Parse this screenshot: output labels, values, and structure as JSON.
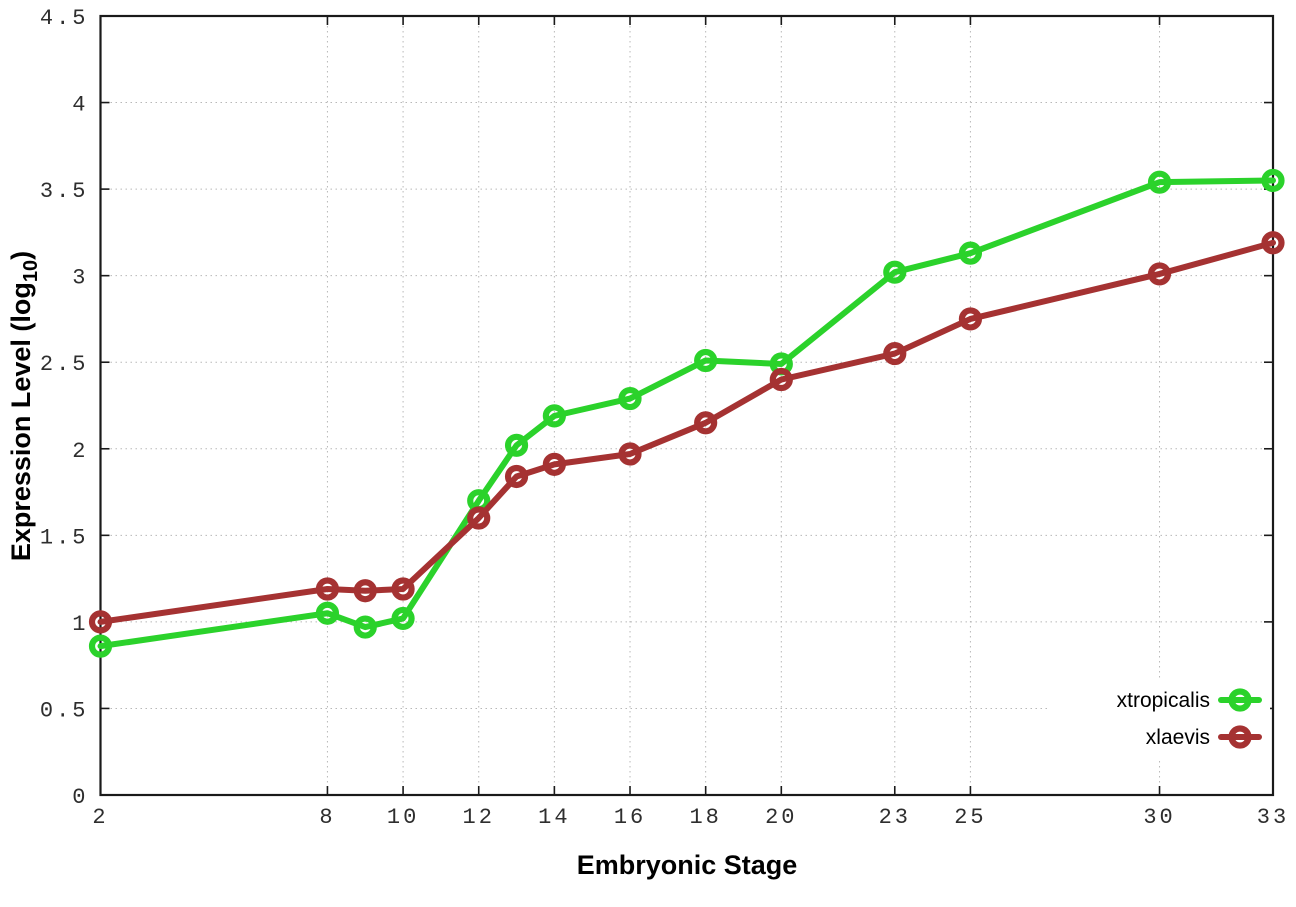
{
  "chart_data": {
    "type": "line",
    "title": "",
    "xlabel": "Embryonic Stage",
    "ylabel": "Expression Level (log10)",
    "ylabel_parts": {
      "prefix": "Expression Level (log",
      "subscript": "10",
      "suffix": ")"
    },
    "xlim": [
      2,
      33
    ],
    "ylim": [
      0,
      4.5
    ],
    "x_ticks": [
      2,
      8,
      10,
      12,
      14,
      16,
      18,
      20,
      23,
      25,
      30,
      33
    ],
    "y_ticks": [
      0,
      0.5,
      1,
      1.5,
      2,
      2.5,
      3,
      3.5,
      4,
      4.5
    ],
    "grid": "dotted",
    "legend_position": "bottom-right-inside",
    "x": [
      2,
      8,
      9,
      10,
      12,
      13,
      14,
      16,
      18,
      20,
      23,
      25,
      30,
      33
    ],
    "series": [
      {
        "name": "xtropicalis",
        "color": "#2bd22b",
        "marker": "open-circle",
        "values": [
          0.86,
          1.05,
          0.97,
          1.02,
          1.7,
          2.02,
          2.19,
          2.29,
          2.51,
          2.49,
          3.02,
          3.13,
          3.54,
          3.55
        ]
      },
      {
        "name": "xlaevis",
        "color": "#a53232",
        "marker": "open-circle",
        "values": [
          1.0,
          1.19,
          1.18,
          1.19,
          1.6,
          1.84,
          1.91,
          1.97,
          2.15,
          2.4,
          2.55,
          2.75,
          3.01,
          3.19
        ]
      }
    ],
    "colors": {
      "frame": "#1a1a1a",
      "grid": "#b8b8b8",
      "tick_label": "#2e2e2e",
      "text": "#000000",
      "background": "#ffffff"
    }
  }
}
